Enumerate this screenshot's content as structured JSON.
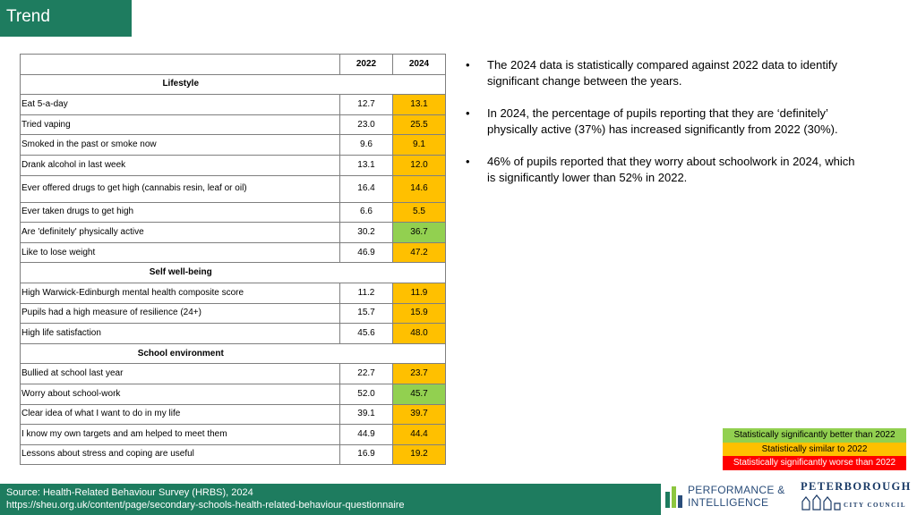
{
  "header": {
    "title": "Trend"
  },
  "table": {
    "columns": [
      "2022",
      "2024"
    ],
    "sections": [
      {
        "label": "Lifestyle",
        "rows": [
          {
            "label": "Eat 5-a-day",
            "v2022": "12.7",
            "v2024": "13.1",
            "status": "similar"
          },
          {
            "label": "Tried vaping",
            "v2022": "23.0",
            "v2024": "25.5",
            "status": "similar"
          },
          {
            "label": "Smoked in the past or smoke now",
            "v2022": "9.6",
            "v2024": "9.1",
            "status": "similar"
          },
          {
            "label": "Drank alcohol in last week",
            "v2022": "13.1",
            "v2024": "12.0",
            "status": "similar"
          },
          {
            "label": "Ever offered drugs to get high (cannabis resin, leaf or oil)",
            "v2022": "16.4",
            "v2024": "14.6",
            "status": "similar",
            "tall": true
          },
          {
            "label": "Ever taken drugs to get high",
            "v2022": "6.6",
            "v2024": "5.5",
            "status": "similar"
          },
          {
            "label": "Are 'definitely' physically active",
            "v2022": "30.2",
            "v2024": "36.7",
            "status": "better"
          },
          {
            "label": "Like to lose weight",
            "v2022": "46.9",
            "v2024": "47.2",
            "status": "similar"
          }
        ]
      },
      {
        "label": "Self well-being",
        "rows": [
          {
            "label": "High Warwick-Edinburgh mental health composite score",
            "v2022": "11.2",
            "v2024": "11.9",
            "status": "similar"
          },
          {
            "label": "Pupils had a high measure of resilience (24+)",
            "v2022": "15.7",
            "v2024": "15.9",
            "status": "similar"
          },
          {
            "label": "High life satisfaction",
            "v2022": "45.6",
            "v2024": "48.0",
            "status": "similar"
          }
        ]
      },
      {
        "label": "School environment",
        "rows": [
          {
            "label": "Bullied at school last year",
            "v2022": "22.7",
            "v2024": "23.7",
            "status": "similar"
          },
          {
            "label": "Worry about school-work",
            "v2022": "52.0",
            "v2024": "45.7",
            "status": "better"
          },
          {
            "label": "Clear idea of what I want to do in my life",
            "v2022": "39.1",
            "v2024": "39.7",
            "status": "similar"
          },
          {
            "label": "I know my own targets and am helped to meet them",
            "v2022": "44.9",
            "v2024": "44.4",
            "status": "similar"
          },
          {
            "label": "Lessons about stress and coping are useful",
            "v2022": "16.9",
            "v2024": "19.2",
            "status": "similar"
          }
        ]
      }
    ]
  },
  "bullets": [
    "The 2024 data is statistically compared against 2022 data to identify significant change between the years.",
    "In 2024, the percentage of pupils reporting that they are ‘definitely’ physically active (37%) has increased significantly from 2022 (30%).",
    "46% of pupils reported that they worry about schoolwork in 2024, which is significantly lower than 52% in 2022."
  ],
  "legend": [
    {
      "label": "Statistically significantly better than 2022",
      "color": "#92d050",
      "text_color": "#000000"
    },
    {
      "label": "Statistically similar to 2022",
      "color": "#ffc000",
      "text_color": "#000000"
    },
    {
      "label": "Statistically significantly worse than  2022",
      "color": "#ff0000",
      "text_color": "#ffffff"
    }
  ],
  "status_colors": {
    "better": "#92d050",
    "similar": "#ffc000",
    "worse": "#ff0000"
  },
  "footer": {
    "source": "Source: Health-Related Behaviour Survey (HRBS), 2024",
    "url": "https://sheu.org.uk/content/page/secondary-schools-health-related-behaviour-questionnaire"
  },
  "logos": {
    "pi_line1": "PERFORMANCE &",
    "pi_line2": "INTELLIGENCE",
    "pcc_line1": "PETERBOROUGH",
    "pcc_line2": "CITY COUNCIL"
  },
  "theme": {
    "primary": "#1e7c5f"
  }
}
